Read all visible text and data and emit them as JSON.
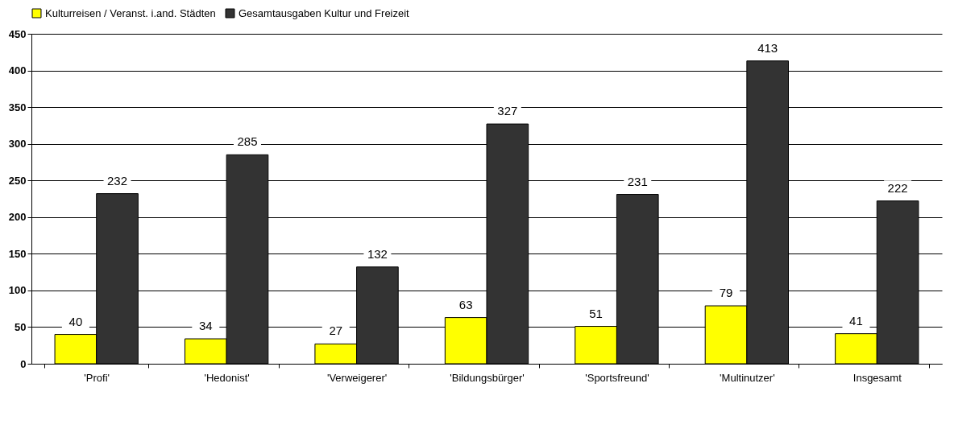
{
  "chart_data": {
    "type": "bar",
    "categories": [
      "'Profi'",
      "'Hedonist'",
      "'Verweigerer'",
      "'Bildungsbürger'",
      "'Sportsfreund'",
      "'Multinutzer'",
      "Insgesamt"
    ],
    "series": [
      {
        "name": "Kulturreisen / Veranst. i.and. Städten",
        "color": "#ffff00",
        "values": [
          40,
          34,
          27,
          63,
          51,
          79,
          41
        ]
      },
      {
        "name": "Gesamtausgaben Kultur und Freizeit",
        "color": "#333333",
        "values": [
          232,
          285,
          132,
          327,
          231,
          413,
          222
        ]
      }
    ],
    "ylim": [
      0,
      450
    ],
    "yticks": [
      0,
      50,
      100,
      150,
      200,
      250,
      300,
      350,
      400,
      450
    ],
    "grid": "y",
    "legend": "top",
    "data_labels": true
  }
}
